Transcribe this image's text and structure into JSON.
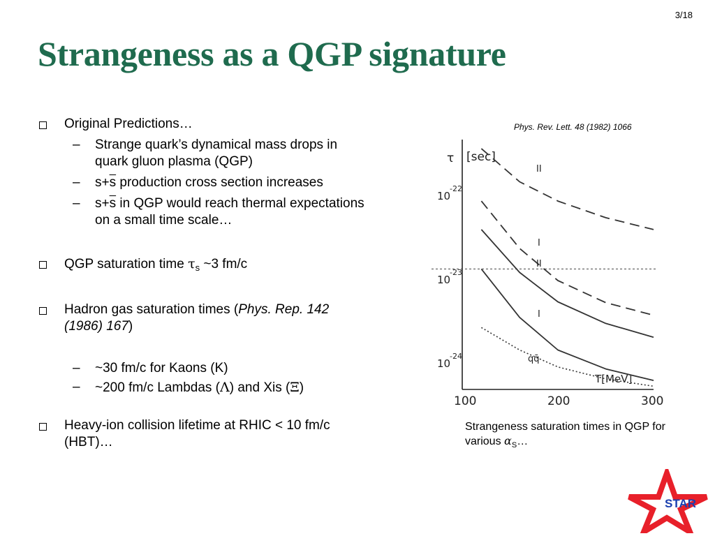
{
  "slide": {
    "page_number": "3/18",
    "title": "Strangeness as a QGP signature"
  },
  "bullets": {
    "original": {
      "label": "Original Predictions…",
      "sub1": "Strange quark’s dynamical mass drops in quark gluon plasma (QGP)",
      "sub2_pre": "s+",
      "sub2_bar": "s",
      "sub2_post": " production cross section increases",
      "sub3_pre": "s+",
      "sub3_bar": "s",
      "sub3_post": " in QGP would reach thermal expectations on a small time scale…"
    },
    "qgp_time": {
      "pre": "QGP saturation time ",
      "tau": "τ",
      "sub": "s",
      "post": " ~3 fm/c"
    },
    "hadron": {
      "pre": "Hadron gas saturation times (",
      "ref": "Phys. Rep. 142 (1986) 167",
      "post": ")",
      "sub1": "~30 fm/c for Kaons (K)",
      "sub2_pre": "~200 fm/c Lambdas (",
      "sub2_lambda": "Λ",
      "sub2_mid": ") and Xis (",
      "sub2_xi": "Ξ",
      "sub2_post": ")"
    },
    "lifetime": {
      "label": "Heavy-ion collision lifetime at RHIC < 10 fm/c (HBT)…"
    }
  },
  "figure": {
    "citation": "Phys. Rev. Lett. 48 (1982) 1066",
    "axis": {
      "y_label_tau": "τ",
      "y_unit": "[sec]",
      "y_tick_base": "10",
      "y_exp_1": "-22",
      "y_exp_2": "-23",
      "y_exp_3": "-24",
      "x_unit": "T[MeV]",
      "x_ticks": [
        "100",
        "200",
        "300"
      ]
    },
    "curve_labels": {
      "ii_top": "II",
      "i_mid": "I",
      "ii_mid": "II",
      "i_low": "I",
      "qq": "qq̄"
    },
    "caption_pre": "Strangeness saturation times in QGP for various ",
    "caption_alpha": "α",
    "caption_sub": "S",
    "caption_post": "…"
  },
  "chart_data": {
    "type": "line",
    "title": "",
    "xlabel": "T[MeV]",
    "ylabel": "τ [sec]",
    "xlim": [
      100,
      300
    ],
    "ylim": [
      6e-25,
      3e-22
    ],
    "y_scale": "log",
    "hline_y": 1.2e-23,
    "series": [
      {
        "name": "II",
        "style": "dashed",
        "x": [
          120,
          160,
          200,
          250,
          300
        ],
        "y": [
          2.4e-22,
          1.05e-22,
          6.5e-23,
          4.3e-23,
          3.2e-23
        ]
      },
      {
        "name": "I",
        "style": "dashed",
        "x": [
          120,
          160,
          200,
          250,
          300
        ],
        "y": [
          6.5e-23,
          2e-23,
          9e-24,
          5.2e-24,
          3.8e-24
        ]
      },
      {
        "name": "II",
        "style": "solid",
        "x": [
          120,
          160,
          200,
          250,
          300
        ],
        "y": [
          3.2e-23,
          1.1e-23,
          5.3e-24,
          3.1e-24,
          2.2e-24
        ]
      },
      {
        "name": "I",
        "style": "solid",
        "x": [
          120,
          160,
          200,
          250,
          300
        ],
        "y": [
          1.2e-23,
          3.6e-24,
          1.6e-24,
          1e-24,
          7.5e-25
        ]
      },
      {
        "name": "qq̄",
        "style": "dotted",
        "x": [
          120,
          160,
          200,
          250,
          300
        ],
        "y": [
          2.8e-24,
          1.6e-24,
          1.05e-24,
          7.8e-25,
          6.5e-25
        ]
      }
    ]
  },
  "logo": {
    "text": "STAR",
    "star_color": "#e8202a",
    "text_color": "#1a3fb0"
  },
  "colors": {
    "title": "#1f6b4e"
  }
}
